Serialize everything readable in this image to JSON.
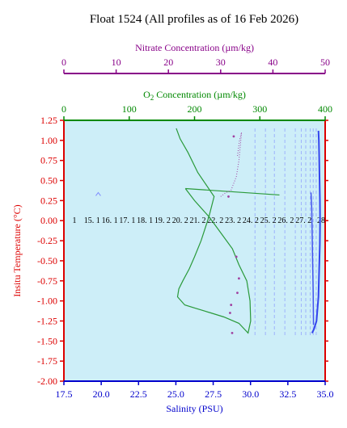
{
  "chart_data": {
    "type": "line",
    "title": "Float 1524  (All profiles as of 16 Feb 2026)",
    "colors": {
      "plot_bg": "#cdeef8",
      "temperature_axis": "#dd0000",
      "salinity_axis": "#0000cc",
      "oxygen_axis": "#008800",
      "nitrate_axis": "#880088",
      "profiles": "#7f8cff",
      "oxygen_series": "#2a9a3a",
      "nitrate_series": "#a040a0"
    },
    "x_axes": [
      {
        "id": "nitrate",
        "label": "Nitrate Concentration (µm/kg)",
        "range": [
          0,
          50
        ],
        "ticks": [
          "0",
          "10",
          "20",
          "30",
          "40",
          "50"
        ]
      },
      {
        "id": "oxygen",
        "label_prefix": "O",
        "label_sub": "2",
        "label_suffix": " Concentration (µm/kg)",
        "range": [
          0,
          400
        ],
        "ticks": [
          "0",
          "100",
          "200",
          "300",
          "400"
        ]
      },
      {
        "id": "salinity",
        "label": "Salinity (PSU)",
        "range": [
          17.5,
          35.0
        ],
        "ticks": [
          "17.5",
          "20.0",
          "22.5",
          "25.0",
          "27.5",
          "30.0",
          "32.5",
          "35.0"
        ]
      }
    ],
    "y_axis": {
      "label": "Insitu Temperature (°C)",
      "range": [
        -2.0,
        1.25
      ],
      "ticks": [
        "1.25",
        "1.00",
        "0.75",
        "0.50",
        "0.25",
        "0.00",
        "-0.25",
        "-0.50",
        "-0.75",
        "-1.00",
        "-1.25",
        "-1.50",
        "-1.75",
        "-2.00"
      ]
    },
    "profile_labels": [
      "1",
      "15. 1",
      "16. 1",
      "17. 1",
      "18. 1",
      "19. 2",
      "20. 2",
      "21. 2",
      "22. 2",
      "23. 2",
      "24. 2",
      "25. 2",
      "26. 2",
      "27. 2",
      "28"
    ],
    "profile_label_y": 0.0,
    "series": [
      {
        "id": "oxygen",
        "axis": "oxygen",
        "x": [
          172,
          178,
          190,
          205,
          230,
          222,
          210,
          200,
          192,
          182,
          176,
          174,
          185,
          205,
          225,
          245,
          268,
          282,
          286,
          285,
          280,
          268,
          258,
          240,
          222,
          200,
          186
        ],
        "y": [
          1.15,
          1.02,
          0.85,
          0.6,
          0.3,
          0.05,
          -0.25,
          -0.45,
          -0.6,
          -0.75,
          -0.85,
          -0.95,
          -1.05,
          -1.1,
          -1.15,
          -1.2,
          -1.28,
          -1.4,
          -1.25,
          -1.0,
          -0.75,
          -0.55,
          -0.35,
          -0.15,
          0.05,
          0.25,
          0.4
        ],
        "closed_to": [
          {
            "x": 330,
            "y": 0.32
          }
        ]
      },
      {
        "id": "nitrate",
        "axis": "nitrate",
        "x": [
          30.0,
          31.0,
          32.0,
          33.0,
          33.5,
          33.8,
          34.0,
          33.6,
          33.2
        ],
        "y": [
          0.3,
          0.35,
          0.38,
          0.55,
          0.75,
          0.95,
          1.1,
          1.0,
          0.8
        ],
        "scatter": [
          {
            "x": 33.0,
            "y": -0.45
          },
          {
            "x": 32.0,
            "y": -1.05
          },
          {
            "x": 31.8,
            "y": -1.15
          },
          {
            "x": 32.2,
            "y": -1.4
          },
          {
            "x": 33.5,
            "y": -0.72
          },
          {
            "x": 33.2,
            "y": -0.9
          },
          {
            "x": 31.5,
            "y": 0.3
          },
          {
            "x": 32.5,
            "y": 1.05
          }
        ]
      },
      {
        "id": "salinity_deep",
        "axis": "salinity",
        "x": [
          34.55,
          34.58,
          34.6,
          34.62,
          34.65,
          34.66,
          34.64,
          34.6,
          34.55,
          34.42,
          34.25,
          34.12
        ],
        "y": [
          1.12,
          1.0,
          0.8,
          0.55,
          0.25,
          0.0,
          -0.3,
          -0.6,
          -0.95,
          -1.25,
          -1.35,
          -1.4
        ]
      },
      {
        "id": "salinity_mid",
        "axis": "salinity",
        "x": [
          34.05,
          34.1,
          34.15,
          34.2,
          34.22
        ],
        "y": [
          0.35,
          0.15,
          -0.4,
          -0.9,
          -1.3
        ]
      }
    ],
    "profile_lines_salinity": [
      30.3,
      31.0,
      31.6,
      32.3,
      33.0,
      33.4,
      33.7,
      34.0,
      34.2,
      34.4
    ],
    "isolated_point": {
      "axis": "salinity",
      "x": 19.8,
      "y": 0.33
    }
  }
}
